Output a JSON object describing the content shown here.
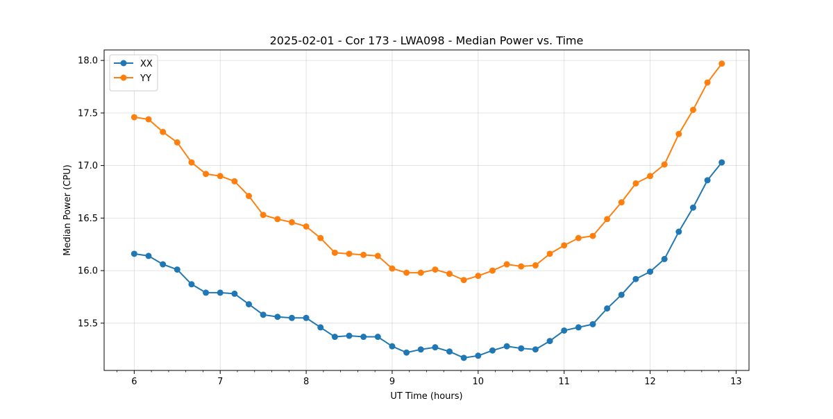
{
  "chart_data": {
    "type": "line",
    "title": "2025-02-01 - Cor 173 - LWA098 - Median Power vs. Time",
    "xlabel": "UT Time (hours)",
    "ylabel": "Median Power (CPU)",
    "xlim": [
      5.65,
      13.15
    ],
    "ylim": [
      15.05,
      18.1
    ],
    "xticks": [
      6,
      7,
      8,
      9,
      10,
      11,
      12,
      13
    ],
    "xtick_labels": [
      "6",
      "7",
      "8",
      "9",
      "10",
      "11",
      "12",
      "13"
    ],
    "yticks": [
      15.5,
      16.0,
      16.5,
      17.0,
      17.5,
      18.0
    ],
    "ytick_labels": [
      "15.5",
      "16.0",
      "16.5",
      "17.0",
      "17.5",
      "18.0"
    ],
    "grid": true,
    "legend_position": "upper-left",
    "x": [
      6.0,
      6.1667,
      6.3333,
      6.5,
      6.6667,
      6.8333,
      7.0,
      7.1667,
      7.3333,
      7.5,
      7.6667,
      7.8333,
      8.0,
      8.1667,
      8.3333,
      8.5,
      8.6667,
      8.8333,
      9.0,
      9.1667,
      9.3333,
      9.5,
      9.6667,
      9.8333,
      10.0,
      10.1667,
      10.3333,
      10.5,
      10.6667,
      10.8333,
      11.0,
      11.1667,
      11.3333,
      11.5,
      11.6667,
      11.8333,
      12.0,
      12.1667,
      12.3333,
      12.5,
      12.6667,
      12.8333
    ],
    "series": [
      {
        "name": "XX",
        "color": "#1f77b4",
        "values": [
          16.16,
          16.14,
          16.06,
          16.01,
          15.87,
          15.79,
          15.79,
          15.78,
          15.68,
          15.58,
          15.56,
          15.55,
          15.55,
          15.46,
          15.37,
          15.38,
          15.37,
          15.37,
          15.28,
          15.22,
          15.25,
          15.27,
          15.23,
          15.17,
          15.19,
          15.24,
          15.28,
          15.26,
          15.25,
          15.33,
          15.43,
          15.46,
          15.49,
          15.64,
          15.77,
          15.92,
          15.99,
          16.11,
          16.37,
          16.6,
          16.86,
          17.03
        ]
      },
      {
        "name": "YY",
        "color": "#ff7f0e",
        "values": [
          17.46,
          17.44,
          17.32,
          17.22,
          17.03,
          16.92,
          16.9,
          16.85,
          16.71,
          16.53,
          16.49,
          16.46,
          16.42,
          16.31,
          16.17,
          16.16,
          16.15,
          16.14,
          16.02,
          15.98,
          15.98,
          16.01,
          15.97,
          15.91,
          15.95,
          16.0,
          16.06,
          16.04,
          16.05,
          16.16,
          16.24,
          16.31,
          16.33,
          16.49,
          16.65,
          16.83,
          16.9,
          17.01,
          17.3,
          17.53,
          17.79,
          17.97
        ]
      }
    ]
  }
}
